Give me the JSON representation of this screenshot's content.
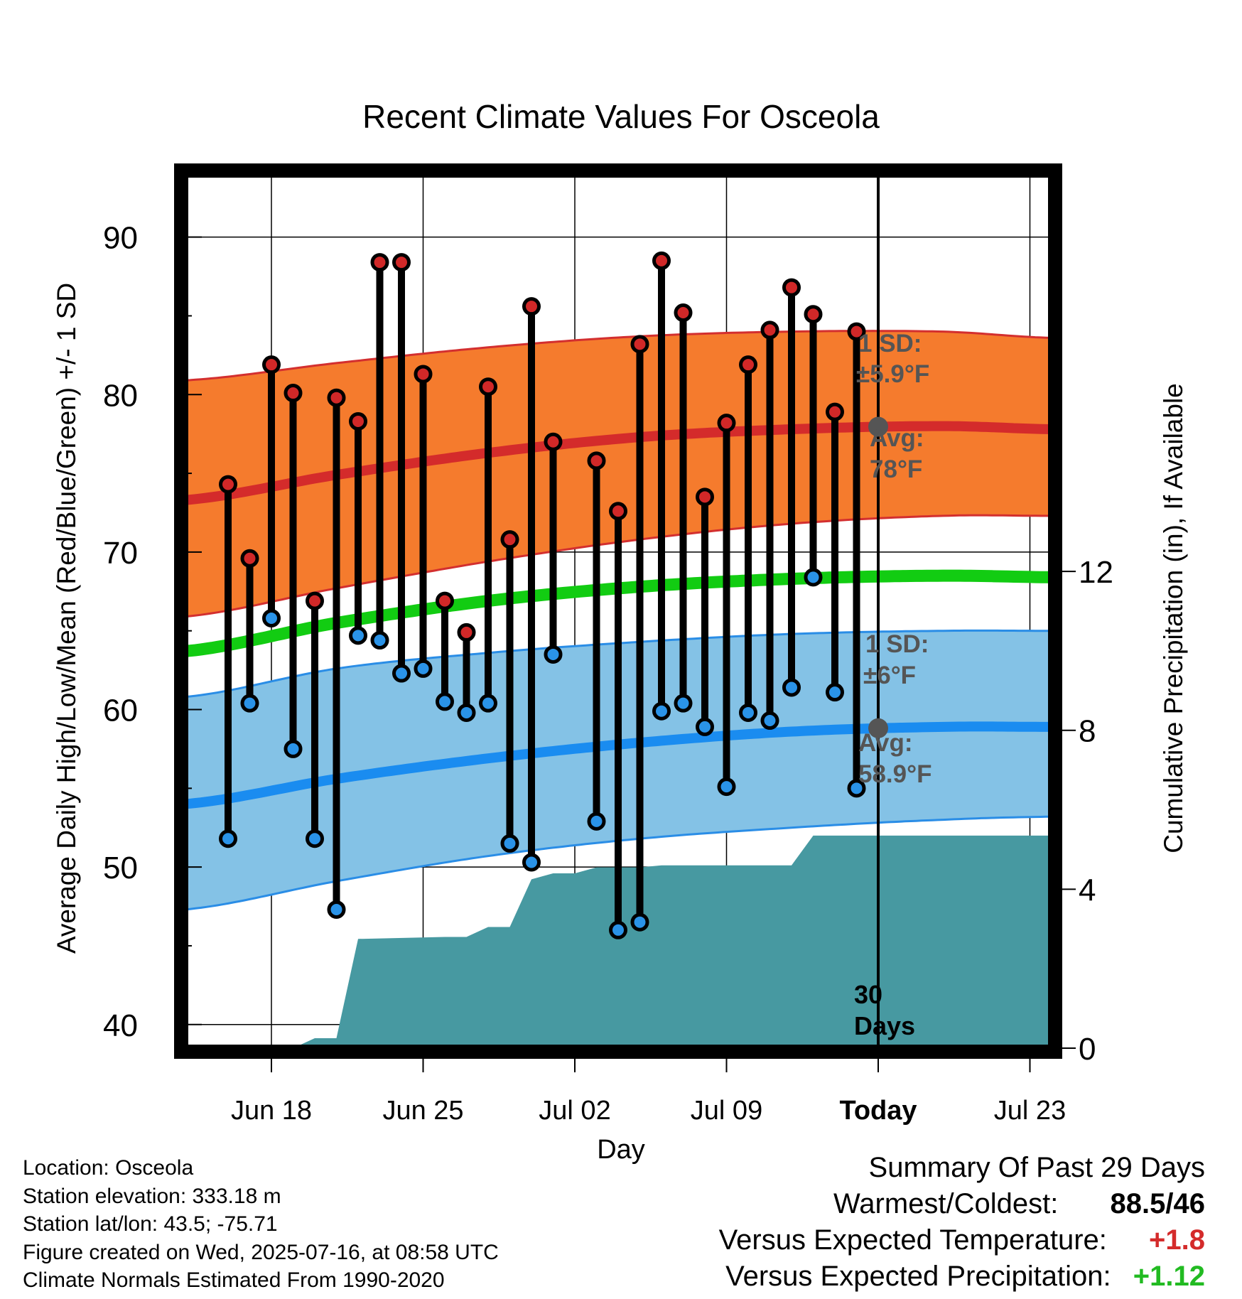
{
  "chart_data": {
    "type": "line",
    "title": "Recent Climate Values For Osceola",
    "xlabel": "Day",
    "ylabel": "Average Daily High/Low/Mean (Red/Blue/Green) +/- 1 SD",
    "y2label": "Cumulative Precipitation (in), If Available",
    "x_start": "2025-06-14",
    "x_end": "2025-07-24",
    "today": "2025-07-16",
    "ylim": [
      38.5,
      94
    ],
    "y_ticks": [
      40,
      50,
      60,
      70,
      80,
      90
    ],
    "y2lim": [
      0,
      22
    ],
    "y2_ticks": [
      0,
      4,
      8,
      12
    ],
    "x_ticks": [
      {
        "date": "2025-06-18",
        "label": "Jun 18"
      },
      {
        "date": "2025-06-25",
        "label": "Jun 25"
      },
      {
        "date": "2025-07-02",
        "label": "Jul 02"
      },
      {
        "date": "2025-07-09",
        "label": "Jul 09"
      },
      {
        "date": "2025-07-16",
        "label": "Today"
      },
      {
        "date": "2025-07-23",
        "label": "Jul 23"
      }
    ],
    "grid": true,
    "daily": {
      "dates": [
        "2025-06-16",
        "2025-06-17",
        "2025-06-18",
        "2025-06-19",
        "2025-06-20",
        "2025-06-21",
        "2025-06-22",
        "2025-06-23",
        "2025-06-24",
        "2025-06-25",
        "2025-06-26",
        "2025-06-27",
        "2025-06-28",
        "2025-06-29",
        "2025-06-30",
        "2025-07-01",
        "2025-07-03",
        "2025-07-04",
        "2025-07-05",
        "2025-07-06",
        "2025-07-07",
        "2025-07-08",
        "2025-07-09",
        "2025-07-10",
        "2025-07-11",
        "2025-07-12",
        "2025-07-13",
        "2025-07-14",
        "2025-07-15"
      ],
      "highs": [
        74.3,
        69.6,
        81.9,
        80.1,
        66.9,
        79.8,
        78.3,
        88.4,
        88.4,
        81.3,
        66.9,
        64.9,
        80.5,
        70.8,
        85.6,
        77.0,
        75.8,
        72.6,
        83.2,
        88.5,
        85.2,
        73.5,
        78.2,
        81.9,
        84.1,
        86.8,
        85.1,
        78.9,
        84.0
      ],
      "lows": [
        51.8,
        60.4,
        65.8,
        57.5,
        51.8,
        47.3,
        64.7,
        64.4,
        62.3,
        62.6,
        60.5,
        59.8,
        60.4,
        51.5,
        50.3,
        63.5,
        52.9,
        46.0,
        46.5,
        59.9,
        60.4,
        58.9,
        55.1,
        59.8,
        59.3,
        61.4,
        68.4,
        61.1,
        55.0
      ]
    },
    "series": [
      {
        "name": "Avg High",
        "x": [
          "2025-06-14",
          "2025-06-21",
          "2025-06-28",
          "2025-07-05",
          "2025-07-12",
          "2025-07-19",
          "2025-07-24"
        ],
        "values": [
          73.3,
          74.9,
          76.3,
          77.3,
          77.8,
          78.0,
          77.8
        ]
      },
      {
        "name": "Avg Low",
        "x": [
          "2025-06-14",
          "2025-06-21",
          "2025-06-28",
          "2025-07-05",
          "2025-07-12",
          "2025-07-19",
          "2025-07-24"
        ],
        "values": [
          54.0,
          55.6,
          56.9,
          57.9,
          58.6,
          58.9,
          58.9
        ]
      },
      {
        "name": "Avg Mean",
        "x": [
          "2025-06-14",
          "2025-06-21",
          "2025-06-28",
          "2025-07-05",
          "2025-07-12",
          "2025-07-19",
          "2025-07-24"
        ],
        "values": [
          63.7,
          65.5,
          66.9,
          67.8,
          68.3,
          68.5,
          68.4
        ]
      },
      {
        "name": "High SD Band",
        "x": [
          "2025-06-14",
          "2025-06-21",
          "2025-06-28",
          "2025-07-05",
          "2025-07-12",
          "2025-07-19",
          "2025-07-24"
        ],
        "upper": [
          80.9,
          82.0,
          83.0,
          83.7,
          84.0,
          84.0,
          83.6
        ],
        "lower": [
          65.9,
          67.7,
          69.4,
          70.8,
          71.8,
          72.3,
          72.3
        ]
      },
      {
        "name": "Low SD Band",
        "x": [
          "2025-06-14",
          "2025-06-21",
          "2025-06-28",
          "2025-07-05",
          "2025-07-12",
          "2025-07-19",
          "2025-07-24"
        ],
        "upper": [
          60.8,
          62.6,
          63.6,
          64.3,
          64.8,
          65.0,
          65.0
        ],
        "lower": [
          47.3,
          49.1,
          50.7,
          51.8,
          52.5,
          53.0,
          53.2
        ]
      },
      {
        "name": "Cumulative Precipitation",
        "x": [
          "2025-06-18",
          "2025-06-19",
          "2025-06-20",
          "2025-06-21",
          "2025-06-22",
          "2025-06-26",
          "2025-06-27",
          "2025-06-28",
          "2025-06-29",
          "2025-06-30",
          "2025-07-01",
          "2025-07-02",
          "2025-07-03",
          "2025-07-05",
          "2025-07-06",
          "2025-07-12",
          "2025-07-13",
          "2025-07-24"
        ],
        "values": [
          0,
          0,
          0.25,
          0.25,
          2.75,
          2.8,
          2.8,
          3.05,
          3.05,
          4.25,
          4.4,
          4.4,
          4.55,
          4.55,
          4.6,
          4.6,
          5.35,
          5.35
        ]
      }
    ],
    "annotations": {
      "high_sd": {
        "label": "1 SD:",
        "value": "±5.9",
        "unit": "°F"
      },
      "high_avg": {
        "label": "Avg:",
        "value": "78",
        "unit": "°F"
      },
      "low_sd": {
        "label": "1 SD:",
        "value": "±6",
        "unit": "°F"
      },
      "low_avg": {
        "label": "Avg:",
        "value": "58.9",
        "unit": "°F"
      },
      "days": [
        "30",
        "Days"
      ]
    },
    "colors": {
      "high_band": "#f57b2d",
      "high_avg": "#d42b2b",
      "low_band": "#84c2e6",
      "low_avg": "#1a8cf0",
      "mean": "#12cc12",
      "precip": "#4799a1",
      "high_dot": "#d12828",
      "low_dot": "#2a93e8",
      "annotation": "#555555"
    }
  },
  "footer": {
    "location": "Location: Osceola",
    "elevation": "Station elevation: 333.18 m",
    "latlon": "Station lat/lon: 43.5; -75.71",
    "created": "Figure created on Wed, 2025-07-16, at 08:58 UTC",
    "normals": "Climate Normals Estimated From 1990-2020"
  },
  "summary": {
    "title": "Summary Of Past 29 Days",
    "warm_cold_label": "Warmest/Coldest:",
    "warm": "88.5",
    "cold": "/46",
    "temp_label": "Versus Expected Temperature:",
    "temp_value": "+1.8",
    "precip_label": "Versus Expected Precipitation:",
    "precip_value": "+1.12",
    "temp_color": "#d42b2b",
    "precip_color": "#22bb22"
  }
}
